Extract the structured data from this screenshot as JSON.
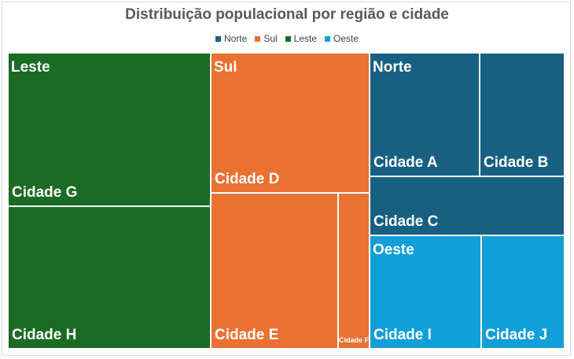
{
  "chart_data": {
    "type": "treemap",
    "title": "Distribuição populacional por região e cidade",
    "legend_position": "top",
    "groups": [
      {
        "name": "Leste",
        "color": "#1b6b24",
        "cities": [
          {
            "name": "Cidade G",
            "value": 29
          },
          {
            "name": "Cidade H",
            "value": 27
          }
        ]
      },
      {
        "name": "Sul",
        "color": "#e97132",
        "cities": [
          {
            "name": "Cidade D",
            "value": 18
          },
          {
            "name": "Cidade E",
            "value": 16
          },
          {
            "name": "Cidade F",
            "value": 4
          }
        ]
      },
      {
        "name": "Norte",
        "color": "#176082",
        "cities": [
          {
            "name": "Cidade A",
            "value": 13
          },
          {
            "name": "Cidade B",
            "value": 10
          },
          {
            "name": "Cidade C",
            "value": 11
          }
        ]
      },
      {
        "name": "Oeste",
        "color": "#109fd6",
        "cities": [
          {
            "name": "Cidade I",
            "value": 12
          },
          {
            "name": "Cidade J",
            "value": 9
          }
        ]
      }
    ],
    "legend": [
      "Norte",
      "Sul",
      "Leste",
      "Oeste"
    ]
  }
}
